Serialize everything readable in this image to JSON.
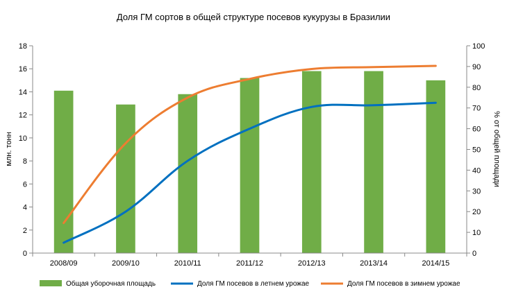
{
  "chart_data": {
    "type": "bar",
    "title": "Доля ГМ сортов в общей структуре посевов кукурузы в Бразилии",
    "categories": [
      "2008/09",
      "2009/10",
      "2010/11",
      "2011/12",
      "2012/13",
      "2013/14",
      "2014/15"
    ],
    "ylabel": "млн. тонн",
    "y2label": "% от общей площади",
    "ylim": [
      0,
      18
    ],
    "y2lim": [
      0,
      100
    ],
    "yticks": [
      "0",
      "2",
      "4",
      "6",
      "8",
      "10",
      "12",
      "14",
      "16",
      "18"
    ],
    "y2ticks": [
      "0",
      "10",
      "20",
      "30",
      "40",
      "50",
      "60",
      "70",
      "80",
      "90",
      "100"
    ],
    "grid": false,
    "legend_position": "bottom",
    "series": [
      {
        "name": "Общая уборочная площадь",
        "type": "bar",
        "axis": "left",
        "color": "#70AD47",
        "values": [
          14.1,
          12.9,
          13.8,
          15.2,
          15.8,
          15.8,
          15.0
        ]
      },
      {
        "name": "Доля ГМ посевов в летнем урожае",
        "type": "line",
        "axis": "right",
        "color": "#0070C0",
        "values": [
          5,
          20,
          44.5,
          60,
          70.5,
          71.3,
          72.5
        ]
      },
      {
        "name": "Доля ГМ посевов в зимнем урожае",
        "type": "line",
        "axis": "right",
        "color": "#ED7D31",
        "values": [
          14.5,
          53,
          75,
          84,
          88.8,
          89.7,
          90.3
        ]
      }
    ]
  }
}
